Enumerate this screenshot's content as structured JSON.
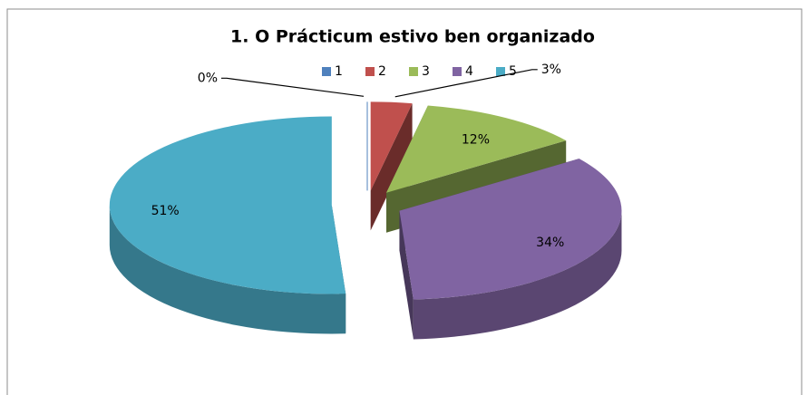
{
  "chart_data": {
    "type": "pie",
    "title": "1. O Prácticum estivo ben organizado",
    "categories": [
      "1",
      "2",
      "3",
      "4",
      "5"
    ],
    "values": [
      0,
      3,
      12,
      34,
      51
    ],
    "value_labels": [
      "0%",
      "3%",
      "12%",
      "34%",
      "51%"
    ],
    "colors": [
      "#4f81bd",
      "#c0504d",
      "#9bbb59",
      "#8064a2",
      "#4bacc6"
    ],
    "legend": "top"
  }
}
